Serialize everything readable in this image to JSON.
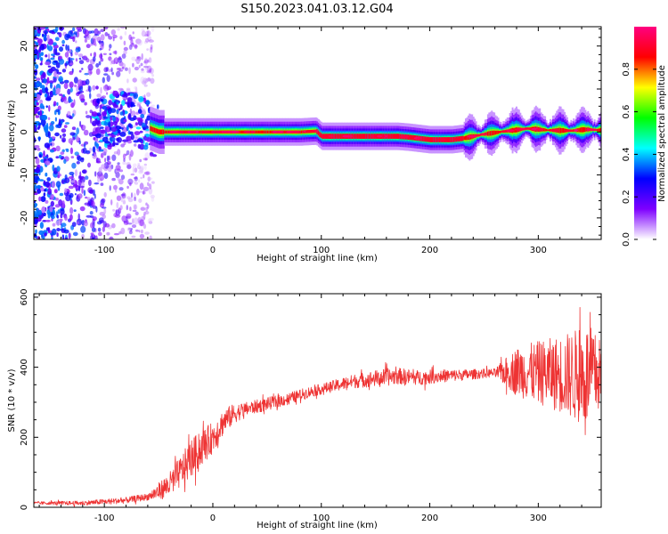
{
  "title": "S150.2023.041.03.12.G04",
  "chart_data": [
    {
      "type": "heatmap",
      "name": "spectrogram",
      "xlabel": "Height of straight line (km)",
      "ylabel": "Frequency (Hz)",
      "xlim": [
        -165,
        358
      ],
      "ylim": [
        -25,
        24.5
      ],
      "xticks": [
        -100,
        0,
        100,
        200,
        300
      ],
      "yticks": [
        -20,
        -10,
        0,
        10,
        20
      ],
      "ridge": {
        "x": [
          -165,
          -140,
          -120,
          -100,
          -90,
          -80,
          -70,
          -60,
          -55,
          -50,
          -40,
          -20,
          0,
          20,
          40,
          60,
          80,
          95,
          100,
          120,
          140,
          160,
          170,
          180,
          190,
          200,
          220,
          230,
          250,
          270,
          290,
          310,
          330,
          345,
          358
        ],
        "y": [
          0,
          1,
          2,
          1.5,
          3,
          4,
          3,
          1,
          0.5,
          0,
          0,
          0,
          0,
          0,
          0,
          0,
          0,
          0.2,
          -1,
          -1,
          -1,
          -1,
          -1,
          -1.2,
          -1.5,
          -1.8,
          -1.8,
          -1.5,
          -0.5,
          0.2,
          0.8,
          0.4,
          0.3,
          0.6,
          0.4
        ]
      },
      "colorbar": {
        "label": "Normalized spectral amplitude",
        "range": [
          0,
          1
        ],
        "ticks": [
          "0.0",
          "0.2",
          "0.4",
          "0.6",
          "0.8"
        ],
        "tick_values": [
          0,
          0.2,
          0.4,
          0.6,
          0.8
        ],
        "stops": [
          "#ffffff",
          "#7e00ff",
          "#0000ff",
          "#00ffff",
          "#00ff00",
          "#ffff00",
          "#ff0000",
          "#ff0080"
        ]
      }
    },
    {
      "type": "line",
      "name": "snr",
      "xlabel": "Height of straight line (km)",
      "ylabel": "SNR (10 * v/v)",
      "xlim": [
        -165,
        358
      ],
      "ylim": [
        0,
        610
      ],
      "xticks": [
        -100,
        0,
        100,
        200,
        300
      ],
      "yticks": [
        0,
        200,
        400,
        600
      ],
      "color": "#ee3333",
      "trend": {
        "x": [
          -165,
          -120,
          -80,
          -60,
          -50,
          -40,
          -30,
          -20,
          -10,
          0,
          10,
          20,
          30,
          50,
          70,
          90,
          110,
          130,
          150,
          170,
          190,
          210,
          230,
          250,
          265,
          280,
          300,
          320,
          340,
          358
        ],
        "y": [
          12,
          12,
          20,
          30,
          45,
          65,
          100,
          140,
          170,
          200,
          245,
          268,
          280,
          295,
          310,
          330,
          345,
          360,
          368,
          375,
          370,
          375,
          378,
          382,
          385,
          388,
          385,
          380,
          375,
          380
        ]
      },
      "noise_envelope": {
        "x": [
          -165,
          -60,
          -50,
          -20,
          0,
          30,
          100,
          160,
          200,
          260,
          280,
          320,
          345,
          358
        ],
        "amp": [
          4,
          10,
          25,
          55,
          45,
          20,
          15,
          25,
          20,
          12,
          70,
          110,
          150,
          100
        ]
      }
    }
  ]
}
